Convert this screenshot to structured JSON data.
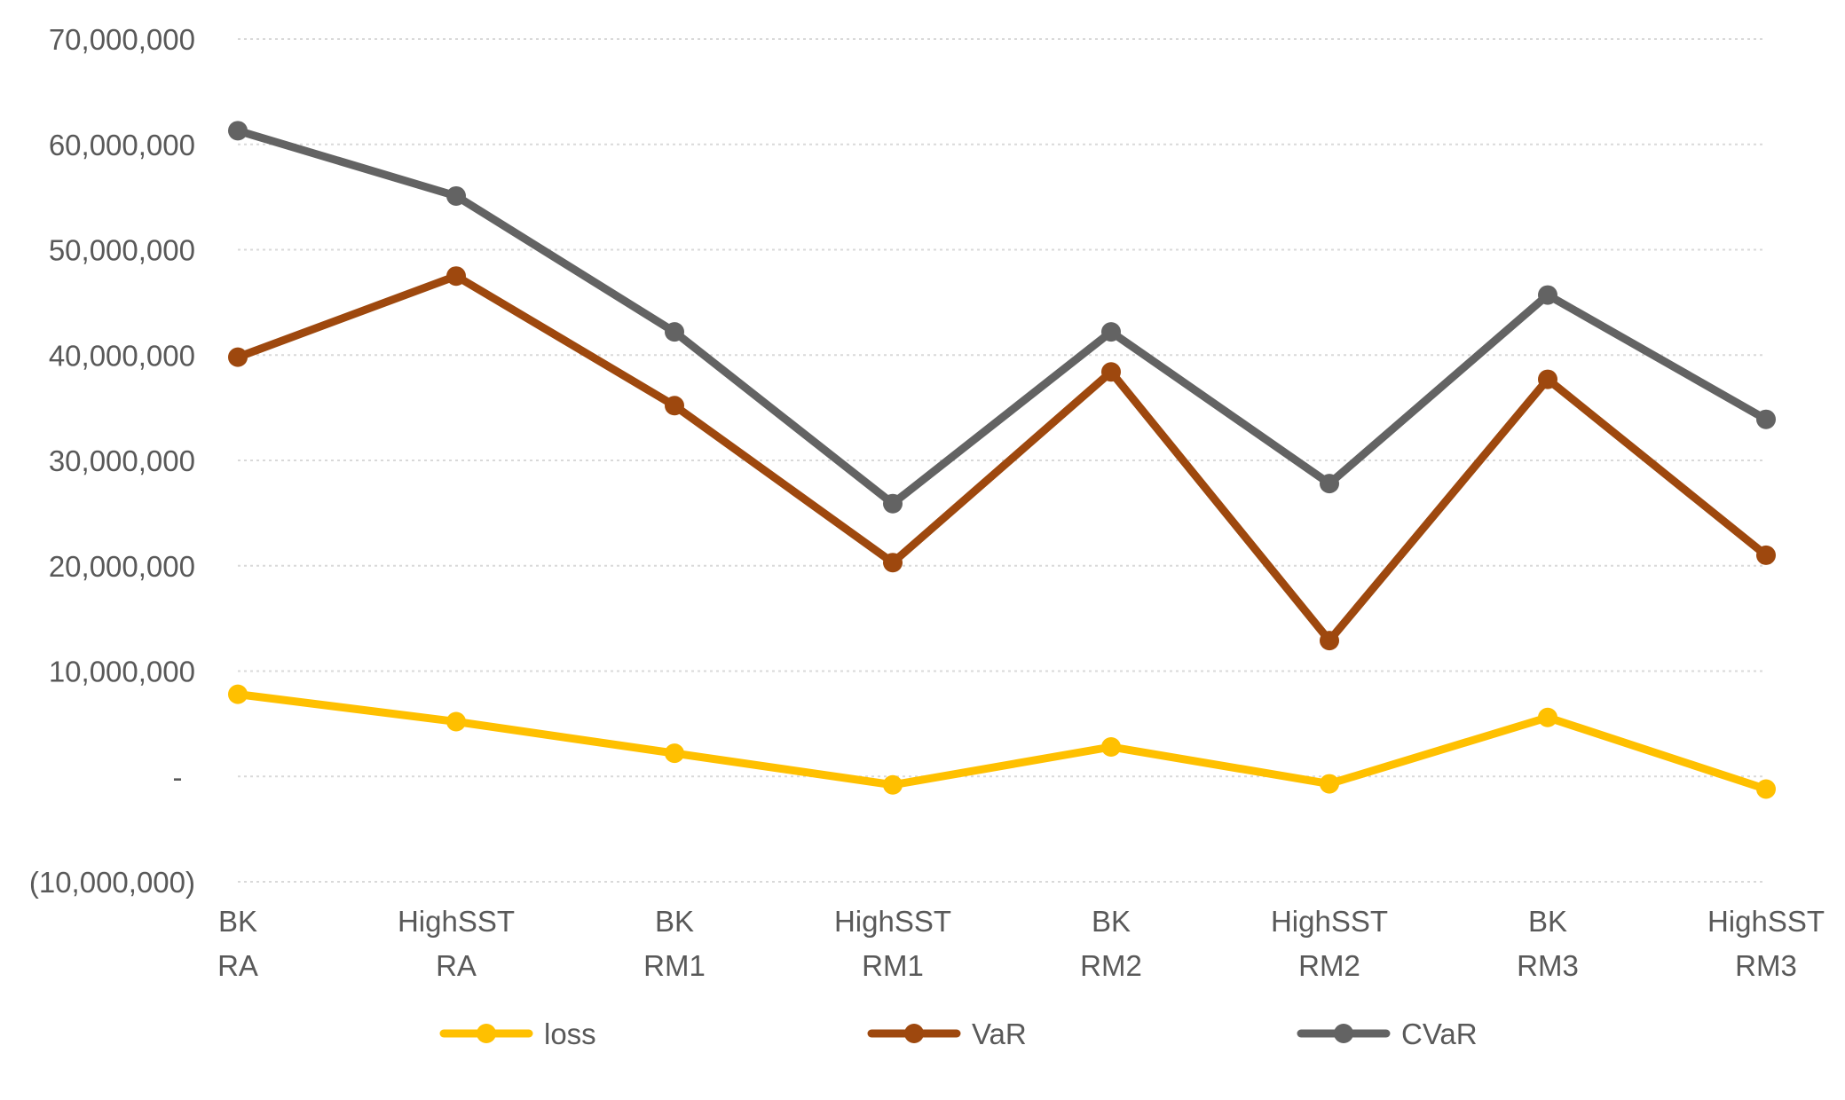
{
  "chart_data": {
    "type": "line",
    "categories": [
      [
        "BK",
        "RA"
      ],
      [
        "HighSST",
        "RA"
      ],
      [
        "BK",
        "RM1"
      ],
      [
        "HighSST",
        "RM1"
      ],
      [
        "BK",
        "RM2"
      ],
      [
        "HighSST",
        "RM2"
      ],
      [
        "BK",
        "RM3"
      ],
      [
        "HighSST",
        "RM3"
      ]
    ],
    "series": [
      {
        "name": "loss",
        "color": "#FFC000",
        "values": [
          7800000,
          5200000,
          2200000,
          -800000,
          2800000,
          -700000,
          5600000,
          -1200000
        ]
      },
      {
        "name": "VaR",
        "color": "#9E480E",
        "values": [
          39800000,
          47500000,
          35200000,
          20300000,
          38400000,
          12900000,
          37700000,
          21000000
        ]
      },
      {
        "name": "CVaR",
        "color": "#636363",
        "values": [
          61300000,
          55100000,
          42200000,
          25900000,
          42200000,
          27800000,
          45700000,
          33900000
        ]
      }
    ],
    "yticks": [
      {
        "value": 70000000,
        "label": "70,000,000"
      },
      {
        "value": 60000000,
        "label": "60,000,000"
      },
      {
        "value": 50000000,
        "label": "50,000,000"
      },
      {
        "value": 40000000,
        "label": "40,000,000"
      },
      {
        "value": 30000000,
        "label": "30,000,000"
      },
      {
        "value": 20000000,
        "label": "20,000,000"
      },
      {
        "value": 10000000,
        "label": "10,000,000"
      },
      {
        "value": 0,
        "label": "-"
      },
      {
        "value": -10000000,
        "label": "(10,000,000)"
      }
    ],
    "ylim": [
      -10000000,
      70000000
    ],
    "grid": true,
    "legend_position": "bottom"
  }
}
